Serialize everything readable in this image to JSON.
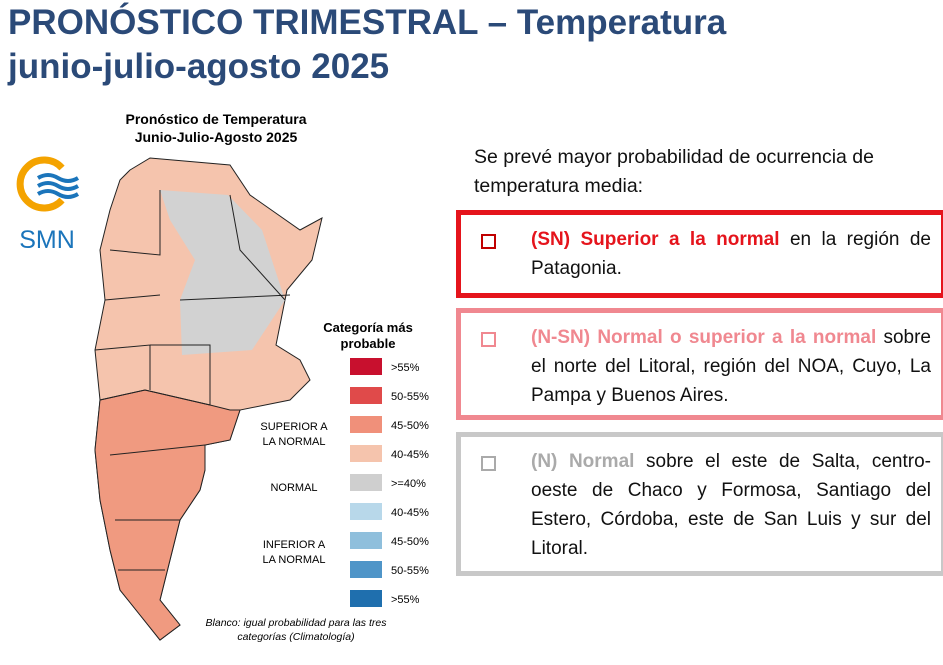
{
  "header": {
    "title_line1": "PRONÓSTICO TRIMESTRAL – Temperatura",
    "title_line2": "junio-julio-agosto 2025"
  },
  "map": {
    "title": [
      "Pronóstico de Temperatura",
      "Junio-Julio-Agosto 2025"
    ],
    "logo": "SMN",
    "legend": {
      "title": [
        "Categoría más",
        "probable"
      ],
      "groups": [
        [
          "SUPERIOR A",
          "LA NORMAL"
        ],
        [
          "NORMAL"
        ],
        [
          "INFERIOR A",
          "LA NORMAL"
        ]
      ],
      "items": [
        ">55%",
        "50-55%",
        "45-50%",
        "40-45%",
        ">=40%",
        "40-45%",
        "45-50%",
        "50-55%",
        ">55%"
      ]
    },
    "note": [
      "Blanco: igual probabilidad para las tres",
      "categorías (Climatología)"
    ]
  },
  "intro": "Se prevé mayor probabilidad de ocurrencia de temperatura media:",
  "boxes": [
    {
      "highlight": "(SN) Superior a la normal",
      "text": "en la región de Patagonia."
    },
    {
      "highlight": "(N-SN) Normal o superior a la normal",
      "text": "sobre el norte del Litoral, región del NOA, Cuyo, La Pampa y Buenos Aires."
    },
    {
      "highlight": "(N) Normal",
      "text": "sobre el este de Salta, centro-oeste de Chaco y Formosa, Santiago del Estero, Córdoba, este de San Luis y sur del Litoral."
    }
  ]
}
